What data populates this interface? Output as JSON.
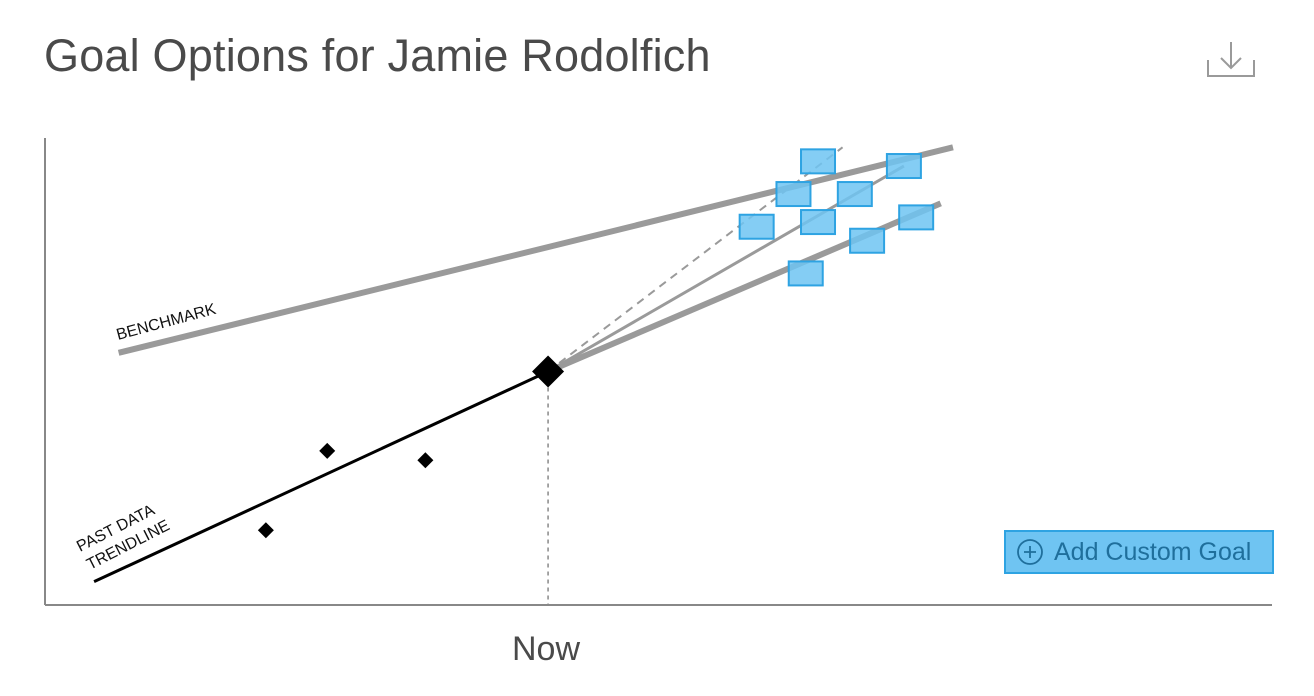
{
  "header": {
    "title": "Goal Options for Jamie Rodolfich",
    "download_icon": "download-icon"
  },
  "add_goal": {
    "label": "Add Custom Goal",
    "icon": "plus-circle-icon"
  },
  "colors": {
    "trend": "#000000",
    "benchmark": "#9a9a9a",
    "goal_fill": "#6fc4f2",
    "goal_stroke": "#2ea3e2"
  },
  "chart_data": {
    "type": "line",
    "xlabel": "Now",
    "ylabel": "",
    "xlim": [
      0,
      10
    ],
    "ylim": [
      0,
      10
    ],
    "grid": false,
    "annotations": {
      "benchmark": "BENCHMARK",
      "trend_line1": "PAST DATA",
      "trend_line2": "TRENDLINE"
    },
    "now_x": 4.1,
    "past_points": [
      {
        "x": 1.8,
        "y": 1.6
      },
      {
        "x": 2.3,
        "y": 3.3
      },
      {
        "x": 3.1,
        "y": 3.1
      }
    ],
    "current_point": {
      "x": 4.1,
      "y": 5.0
    },
    "series": [
      {
        "name": "BENCHMARK",
        "points": [
          [
            0.6,
            5.4
          ],
          [
            7.4,
            9.8
          ]
        ]
      },
      {
        "name": "PAST DATA TRENDLINE",
        "points": [
          [
            0.4,
            0.5
          ],
          [
            4.1,
            5.0
          ]
        ]
      }
    ],
    "goal_lines": [
      {
        "points": [
          [
            4.1,
            5.0
          ],
          [
            6.5,
            9.8
          ]
        ],
        "style": "dashed"
      },
      {
        "points": [
          [
            4.1,
            5.0
          ],
          [
            7.0,
            9.4
          ]
        ],
        "style": "solid"
      },
      {
        "points": [
          [
            4.1,
            5.0
          ],
          [
            7.3,
            8.6
          ]
        ],
        "style": "solid-thick"
      }
    ],
    "goal_markers": [
      {
        "x": 5.8,
        "y": 8.1
      },
      {
        "x": 6.1,
        "y": 8.8
      },
      {
        "x": 6.3,
        "y": 9.5
      },
      {
        "x": 6.3,
        "y": 8.2
      },
      {
        "x": 6.6,
        "y": 8.8
      },
      {
        "x": 7.0,
        "y": 9.4
      },
      {
        "x": 6.2,
        "y": 7.1
      },
      {
        "x": 6.7,
        "y": 7.8
      },
      {
        "x": 7.1,
        "y": 8.3
      }
    ]
  }
}
